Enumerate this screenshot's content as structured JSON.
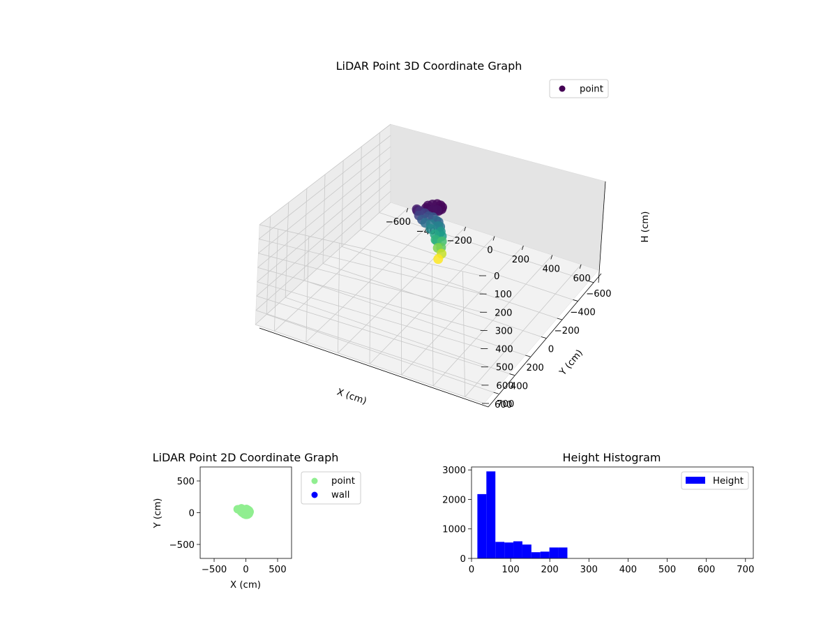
{
  "chart_data": [
    {
      "type": "scatter",
      "projection": "3d",
      "title": "LiDAR Point 3D Coordinate Graph",
      "xlabel": "X (cm)",
      "ylabel": "Y (cm)",
      "zlabel": "H (cm)",
      "xlim": [
        -720,
        720
      ],
      "ylim": [
        -720,
        720
      ],
      "zlim": [
        700,
        0
      ],
      "xticks": [
        -600,
        -400,
        -200,
        0,
        200,
        400,
        600
      ],
      "yticks": [
        -600,
        -400,
        -200,
        0,
        200,
        400,
        600
      ],
      "zticks": [
        0,
        100,
        200,
        300,
        400,
        500,
        600,
        700
      ],
      "zscale_inverted": true,
      "colormap": "viridis",
      "legend": {
        "placement": "top-right",
        "entries": [
          {
            "name": "point",
            "color": "#440154"
          }
        ]
      },
      "series": [
        {
          "name": "point",
          "points": [
            {
              "x": -10,
              "y": 55,
              "z": 30
            },
            {
              "x": 10,
              "y": 60,
              "z": 30
            },
            {
              "x": 30,
              "y": 50,
              "z": 30
            },
            {
              "x": 50,
              "y": 35,
              "z": 35
            },
            {
              "x": 55,
              "y": 10,
              "z": 35
            },
            {
              "x": 45,
              "y": -15,
              "z": 35
            },
            {
              "x": 25,
              "y": -30,
              "z": 35
            },
            {
              "x": 0,
              "y": -35,
              "z": 35
            },
            {
              "x": -25,
              "y": -25,
              "z": 40
            },
            {
              "x": -40,
              "y": 0,
              "z": 40
            },
            {
              "x": -35,
              "y": 30,
              "z": 40
            },
            {
              "x": -20,
              "y": 45,
              "z": 40
            },
            {
              "x": 5,
              "y": 30,
              "z": 45
            },
            {
              "x": 30,
              "y": 15,
              "z": 45
            },
            {
              "x": -70,
              "y": 70,
              "z": 50
            },
            {
              "x": -90,
              "y": 40,
              "z": 60
            },
            {
              "x": -80,
              "y": 20,
              "z": 80
            },
            {
              "x": -60,
              "y": 0,
              "z": 100
            },
            {
              "x": -75,
              "y": 40,
              "z": 100
            },
            {
              "x": -40,
              "y": -10,
              "z": 120
            },
            {
              "x": -20,
              "y": -25,
              "z": 130
            },
            {
              "x": -60,
              "y": 30,
              "z": 130
            },
            {
              "x": 0,
              "y": -30,
              "z": 150
            },
            {
              "x": 20,
              "y": -20,
              "z": 150
            },
            {
              "x": -50,
              "y": 10,
              "z": 160
            },
            {
              "x": 40,
              "y": -5,
              "z": 170
            },
            {
              "x": -30,
              "y": -20,
              "z": 180
            },
            {
              "x": 10,
              "y": -35,
              "z": 190
            },
            {
              "x": 50,
              "y": 20,
              "z": 200
            },
            {
              "x": -20,
              "y": 0,
              "z": 200
            },
            {
              "x": 30,
              "y": -30,
              "z": 220
            },
            {
              "x": 55,
              "y": 0,
              "z": 230
            },
            {
              "x": 0,
              "y": -15,
              "z": 240
            },
            {
              "x": 40,
              "y": 30,
              "z": 250
            },
            {
              "x": 20,
              "y": 10,
              "z": 260
            },
            {
              "x": 45,
              "y": -20,
              "z": 280
            },
            {
              "x": 60,
              "y": 15,
              "z": 300
            },
            {
              "x": 30,
              "y": 0,
              "z": 320
            },
            {
              "x": 50,
              "y": -10,
              "z": 360
            },
            {
              "x": 40,
              "y": 10,
              "z": 390
            }
          ]
        }
      ]
    },
    {
      "type": "scatter",
      "title": "LiDAR Point 2D Coordinate Graph",
      "xlabel": "X (cm)",
      "ylabel": "Y (cm)",
      "xlim": [
        -720,
        720
      ],
      "ylim": [
        -720,
        720
      ],
      "xticks": [
        -500,
        0,
        500
      ],
      "yticks": [
        -500,
        0,
        500
      ],
      "legend": {
        "placement": "outside-right",
        "entries": [
          {
            "name": "point",
            "color": "#90ee90"
          },
          {
            "name": "wall",
            "color": "#0000ff"
          }
        ]
      },
      "series": [
        {
          "name": "point",
          "color": "#90ee90",
          "points": [
            {
              "x": -10,
              "y": 55
            },
            {
              "x": 10,
              "y": 60
            },
            {
              "x": 30,
              "y": 50
            },
            {
              "x": 50,
              "y": 35
            },
            {
              "x": 55,
              "y": 10
            },
            {
              "x": 45,
              "y": -15
            },
            {
              "x": 25,
              "y": -30
            },
            {
              "x": 0,
              "y": -35
            },
            {
              "x": -25,
              "y": -25
            },
            {
              "x": -40,
              "y": 0
            },
            {
              "x": -35,
              "y": 30
            },
            {
              "x": -20,
              "y": 45
            },
            {
              "x": 5,
              "y": 30
            },
            {
              "x": 30,
              "y": 15
            },
            {
              "x": -70,
              "y": 70
            },
            {
              "x": -90,
              "y": 40
            },
            {
              "x": -80,
              "y": 20
            },
            {
              "x": -60,
              "y": 0
            },
            {
              "x": -75,
              "y": 40
            },
            {
              "x": -40,
              "y": -10
            },
            {
              "x": -20,
              "y": -25
            },
            {
              "x": -60,
              "y": 30
            },
            {
              "x": 0,
              "y": -30
            },
            {
              "x": 20,
              "y": -20
            },
            {
              "x": -50,
              "y": 10
            },
            {
              "x": 40,
              "y": -5
            },
            {
              "x": -30,
              "y": -20
            },
            {
              "x": 10,
              "y": -35
            },
            {
              "x": 50,
              "y": 20
            },
            {
              "x": -20,
              "y": 0
            },
            {
              "x": 30,
              "y": -30
            },
            {
              "x": 55,
              "y": 0
            },
            {
              "x": 0,
              "y": -15
            },
            {
              "x": 40,
              "y": 30
            },
            {
              "x": 20,
              "y": 10
            },
            {
              "x": 45,
              "y": -20
            },
            {
              "x": 60,
              "y": 15
            },
            {
              "x": 30,
              "y": 0
            },
            {
              "x": 50,
              "y": -10
            },
            {
              "x": 40,
              "y": 10
            },
            {
              "x": -130,
              "y": 55
            }
          ]
        },
        {
          "name": "wall",
          "color": "#0000ff",
          "points": []
        }
      ]
    },
    {
      "type": "bar",
      "subtype": "histogram",
      "title": "Height Histogram",
      "xlim": [
        0,
        720
      ],
      "ylim": [
        0,
        3100
      ],
      "xticks": [
        0,
        100,
        200,
        300,
        400,
        500,
        600,
        700
      ],
      "yticks": [
        0,
        1000,
        2000,
        3000
      ],
      "legend": {
        "placement": "top-right",
        "entries": [
          {
            "name": "Height",
            "color": "#0000ff"
          }
        ]
      },
      "series": [
        {
          "name": "Height",
          "color": "#0000ff",
          "bins": [
            {
              "x0": 15,
              "x1": 38,
              "value": 2180
            },
            {
              "x0": 38,
              "x1": 61,
              "value": 2950
            },
            {
              "x0": 61,
              "x1": 84,
              "value": 560
            },
            {
              "x0": 84,
              "x1": 107,
              "value": 540
            },
            {
              "x0": 107,
              "x1": 130,
              "value": 580
            },
            {
              "x0": 130,
              "x1": 153,
              "value": 470
            },
            {
              "x0": 153,
              "x1": 176,
              "value": 210
            },
            {
              "x0": 176,
              "x1": 199,
              "value": 230
            },
            {
              "x0": 199,
              "x1": 222,
              "value": 370
            },
            {
              "x0": 222,
              "x1": 245,
              "value": 370
            }
          ]
        }
      ]
    }
  ]
}
